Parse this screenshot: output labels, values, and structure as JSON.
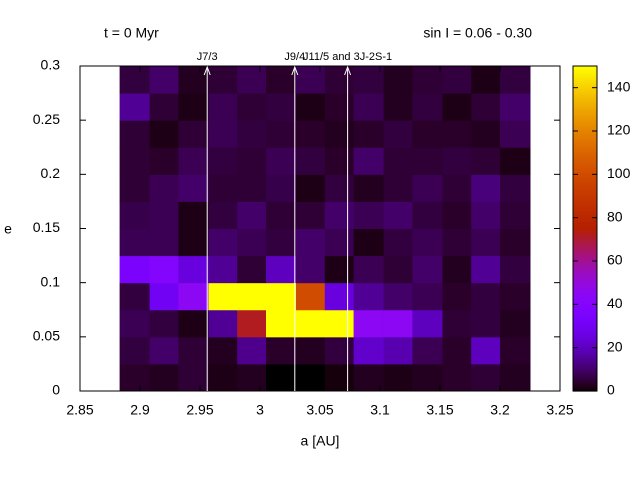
{
  "chart_data": {
    "type": "heatmap",
    "title_left": "t = 0 Myr",
    "title_right": "sin I = 0.06 - 0.30",
    "xlabel": "a [AU]",
    "ylabel": "e",
    "xlim": [
      2.85,
      3.25
    ],
    "xticks": [
      2.85,
      2.9,
      2.95,
      3,
      3.05,
      3.1,
      3.15,
      3.2,
      3.25
    ],
    "ylim": [
      0,
      0.3
    ],
    "yticks": [
      0,
      0.05,
      0.1,
      0.15,
      0.2,
      0.25,
      0.3
    ],
    "zlim": [
      0,
      150
    ],
    "zticks": [
      0,
      20,
      40,
      60,
      80,
      100,
      120,
      140
    ],
    "colormap": "gnuplot",
    "xbins": [
      2.883,
      2.908,
      2.932,
      2.957,
      2.981,
      3.005,
      3.03,
      3.054,
      3.078,
      3.103,
      3.127,
      3.152,
      3.176,
      3.2,
      3.225
    ],
    "ybins": [
      0,
      0.025,
      0.05,
      0.075,
      0.1,
      0.125,
      0.15,
      0.175,
      0.2,
      0.225,
      0.25,
      0.275,
      0.3
    ],
    "z": [
      [
        4,
        3,
        5,
        2,
        3,
        0,
        0,
        1,
        3,
        2,
        3,
        4,
        5,
        3
      ],
      [
        6,
        10,
        5,
        3,
        14,
        4,
        3,
        6,
        22,
        18,
        8,
        4,
        20,
        4
      ],
      [
        8,
        6,
        2,
        15,
        72,
        150,
        150,
        150,
        45,
        45,
        20,
        5,
        6,
        3
      ],
      [
        6,
        30,
        45,
        150,
        150,
        150,
        100,
        25,
        15,
        10,
        8,
        4,
        6,
        4
      ],
      [
        35,
        40,
        25,
        15,
        5,
        20,
        10,
        2,
        8,
        5,
        10,
        3,
        15,
        6
      ],
      [
        8,
        8,
        2,
        10,
        8,
        6,
        10,
        8,
        2,
        6,
        8,
        5,
        8,
        4
      ],
      [
        7,
        8,
        2,
        6,
        10,
        5,
        5,
        10,
        8,
        10,
        6,
        4,
        10,
        5
      ],
      [
        5,
        8,
        10,
        5,
        5,
        7,
        2,
        6,
        3,
        5,
        8,
        5,
        12,
        6
      ],
      [
        5,
        4,
        8,
        6,
        5,
        8,
        6,
        4,
        10,
        5,
        5,
        6,
        5,
        2
      ],
      [
        5,
        2,
        5,
        8,
        6,
        5,
        4,
        3,
        4,
        6,
        4,
        4,
        3,
        8
      ],
      [
        15,
        5,
        2,
        8,
        5,
        6,
        2,
        4,
        8,
        3,
        6,
        2,
        5,
        10
      ],
      [
        6,
        10,
        3,
        5,
        8,
        4,
        8,
        5,
        6,
        3,
        5,
        6,
        2,
        6
      ]
    ],
    "resonances": [
      {
        "label": "J7/3",
        "a": 2.956
      },
      {
        "label": "J9/4",
        "a": 3.029
      },
      {
        "label": "J11/5 and 3J-2S-1",
        "a": 3.073
      }
    ]
  }
}
